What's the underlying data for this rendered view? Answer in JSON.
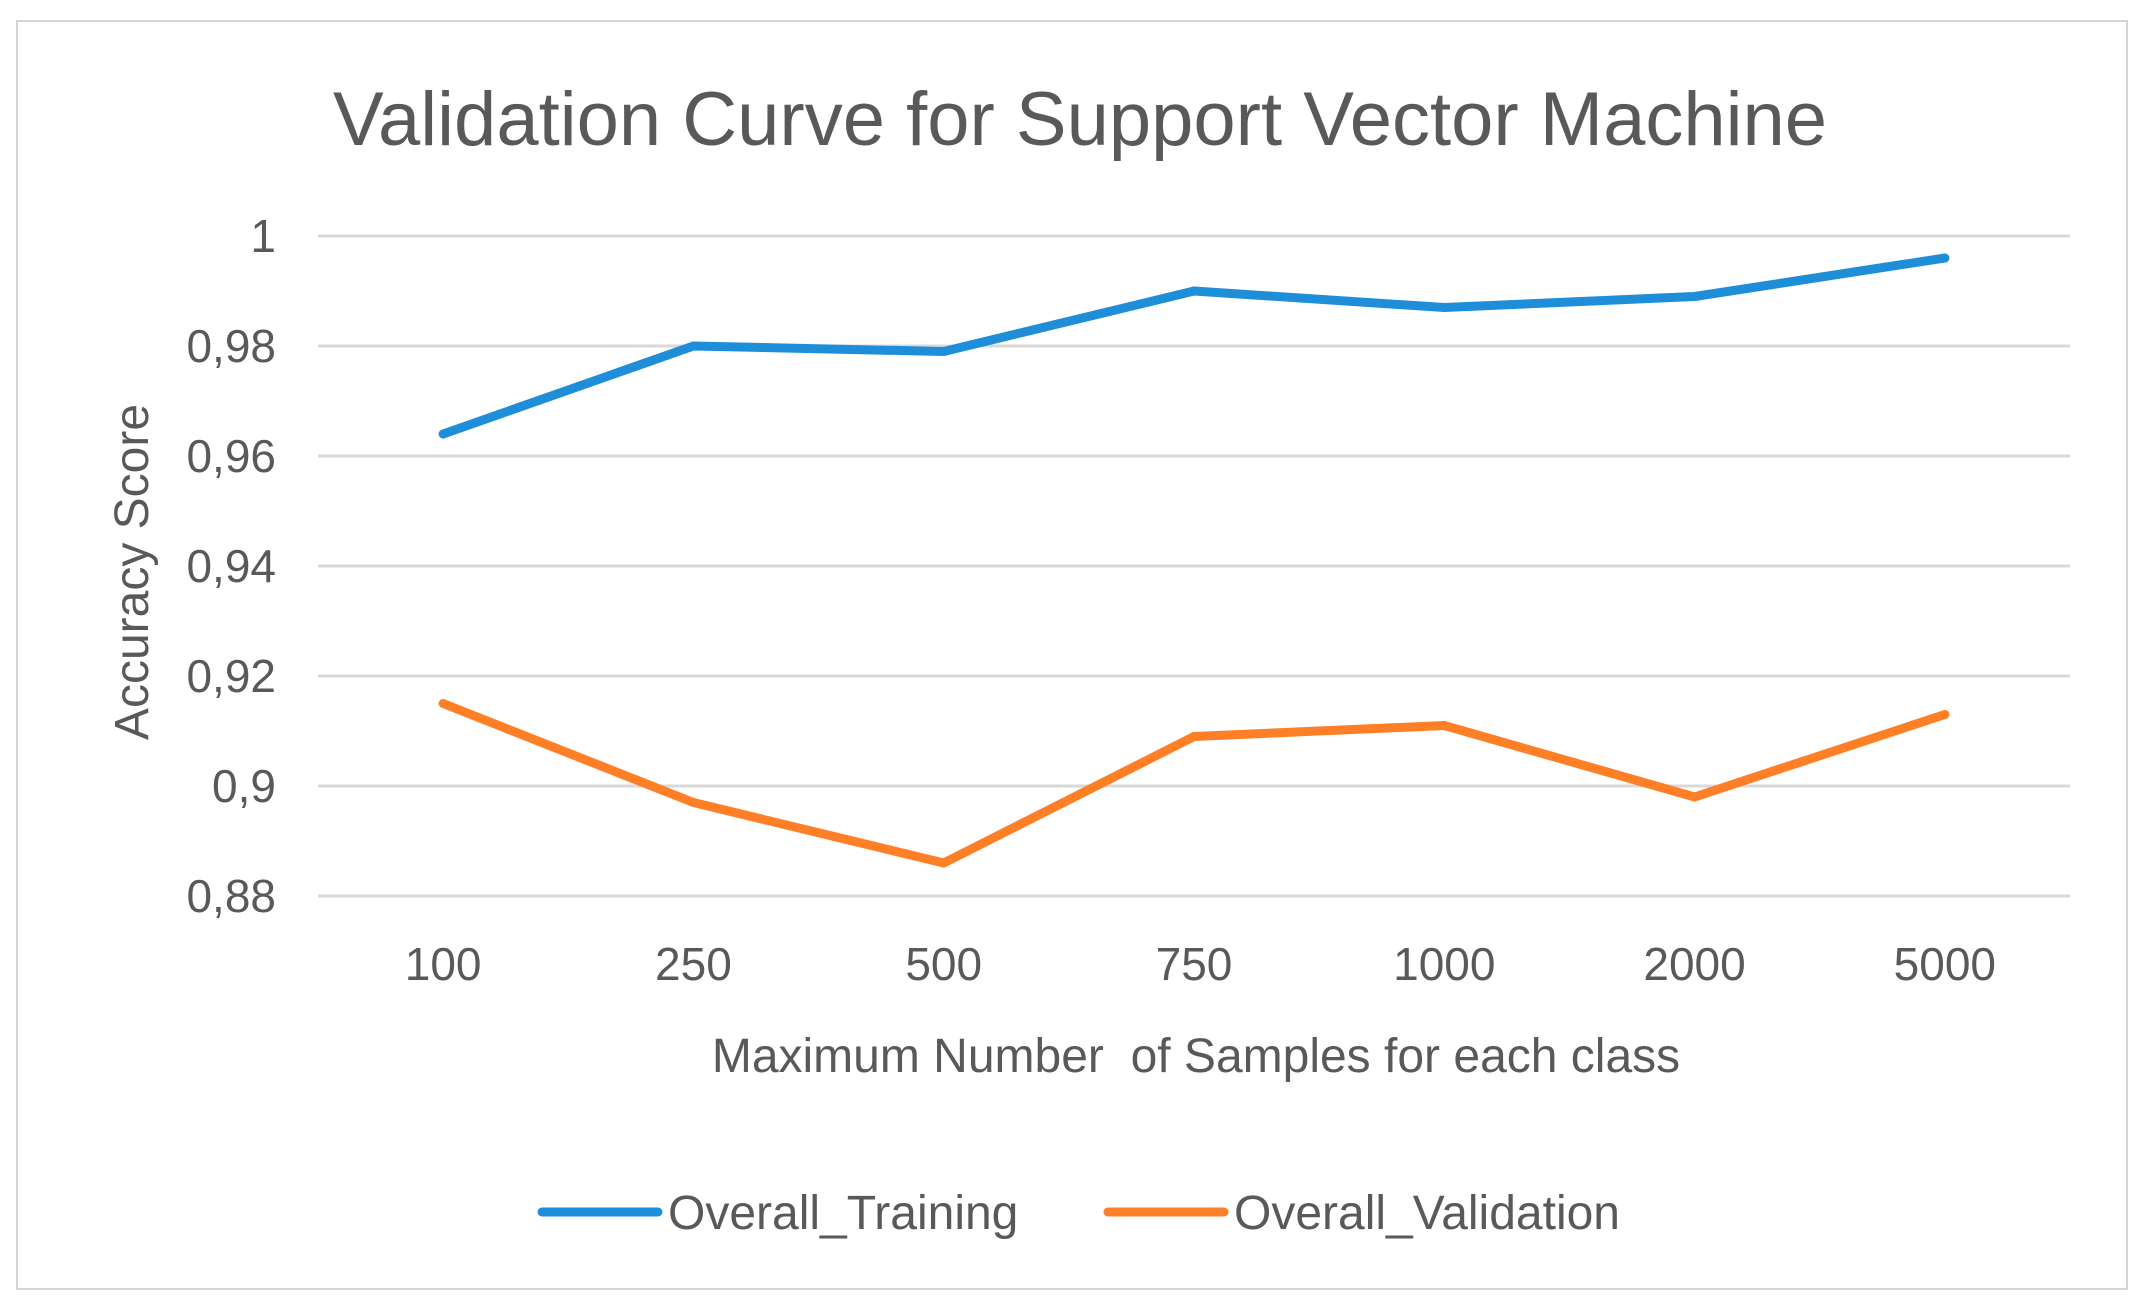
{
  "chart_data": {
    "type": "line",
    "title": "Validation Curve for Support Vector Machine",
    "xlabel": "Maximum Number  of Samples for each class",
    "ylabel": "Accuracy Score",
    "categories": [
      "100",
      "250",
      "500",
      "750",
      "1000",
      "2000",
      "5000"
    ],
    "y_ticks": [
      "0,88",
      "0,9",
      "0,92",
      "0,94",
      "0,96",
      "0,98",
      "1"
    ],
    "ylim": [
      0.88,
      1.0
    ],
    "grid": true,
    "legend_position": "bottom",
    "series": [
      {
        "name": "Overall_Training",
        "color": "#1f8ed8",
        "values": [
          0.964,
          0.98,
          0.979,
          0.99,
          0.987,
          0.989,
          0.996
        ]
      },
      {
        "name": "Overall_Validation",
        "color": "#ff7f27",
        "values": [
          0.915,
          0.897,
          0.886,
          0.909,
          0.911,
          0.898,
          0.913
        ]
      }
    ]
  }
}
